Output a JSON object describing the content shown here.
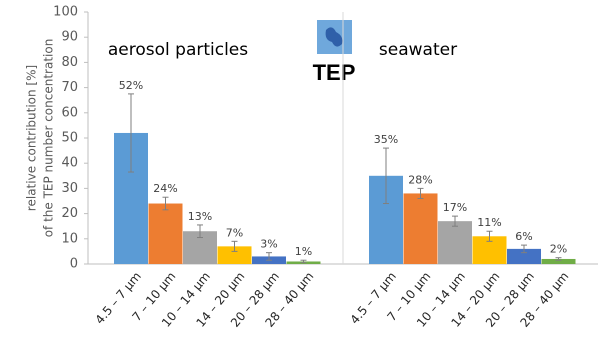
{
  "chart_data": {
    "type": "bar",
    "emblem": "TEP",
    "ylabel": [
      "relative contribution [%]",
      "of the TEP number concentration"
    ],
    "ylim": [
      0,
      100
    ],
    "yticks": [
      0,
      10,
      20,
      30,
      40,
      50,
      60,
      70,
      80,
      90,
      100
    ],
    "grid": false,
    "colors": [
      "#5b9bd5",
      "#ed7d31",
      "#a5a5a5",
      "#ffc000",
      "#4472c4",
      "#70ad47"
    ],
    "panels": [
      {
        "label": "aerosol particles",
        "categories": [
          "4.5 – 7 µm",
          "7 – 10 µm",
          "10 – 14 µm",
          "14 – 20 µm",
          "20 – 28 µm",
          "28 – 40 µm"
        ],
        "values": [
          52,
          24,
          13,
          7,
          3,
          1
        ],
        "value_labels": [
          "52%",
          "24%",
          "13%",
          "7%",
          "3%",
          "1%"
        ],
        "errors": [
          15.5,
          2.5,
          2.5,
          2,
          1.5,
          0.5
        ]
      },
      {
        "label": "seawater",
        "categories": [
          "4.5 – 7 µm",
          "7 – 10 µm",
          "10 – 14 µm",
          "14 – 20 µm",
          "20 – 28 µm",
          "28 – 40 µm"
        ],
        "values": [
          35,
          28,
          17,
          11,
          6,
          2
        ],
        "value_labels": [
          "35%",
          "28%",
          "17%",
          "11%",
          "6%",
          "2%"
        ],
        "errors": [
          11,
          2,
          2,
          2,
          1.5,
          0.5
        ]
      }
    ]
  }
}
